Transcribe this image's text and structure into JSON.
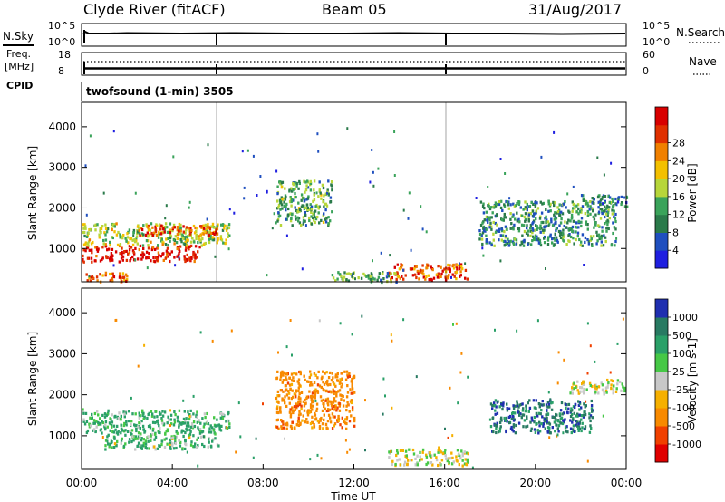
{
  "header": {
    "station": "Clyde River (fitACF)",
    "beam": "Beam 05",
    "date": "31/Aug/2017"
  },
  "noise_panel": {
    "left_label": "N.Sky",
    "right_label": "N.Search",
    "left_ticks": [
      "10^5",
      "10^0"
    ],
    "right_ticks": [
      "10^5",
      "10^0"
    ]
  },
  "freq_panel": {
    "left_label_1": "Freq.",
    "left_label_2": "[MHz]",
    "right_label": "Nave",
    "left_ticks": [
      "18",
      "8"
    ],
    "right_ticks": [
      "60",
      "0"
    ]
  },
  "cpid_panel": {
    "label": "CPID",
    "text": "twofsound (1-min) 3505"
  },
  "colors": {
    "power": [
      "#1f1fe0",
      "#1f4fbf",
      "#2a7a4a",
      "#3aa35a",
      "#b7d63a",
      "#f3c000",
      "#f08000",
      "#e03000",
      "#d80000"
    ],
    "velocity": [
      "#e00000",
      "#f04000",
      "#f88a00",
      "#f6b000",
      "#c8c8c8",
      "#46c846",
      "#2aa068",
      "#287a62",
      "#1f2fb0"
    ]
  },
  "chart_data": [
    {
      "type": "heatmap",
      "name": "power",
      "xlabel": "",
      "ylabel": "Slant Range [km]",
      "x_range": [
        "00:00",
        "00:00"
      ],
      "ylim": [
        180,
        4600
      ],
      "yticks": [
        1000,
        2000,
        3000,
        4000
      ],
      "colorbar": {
        "label": "Power [dB]",
        "ticks": [
          "4",
          "8",
          "12",
          "16",
          "20",
          "24",
          "28"
        ],
        "range": [
          0,
          32
        ]
      },
      "features": [
        {
          "t0": 0.0,
          "t1": 5.2,
          "r0": 700,
          "r1": 1100,
          "value": 30
        },
        {
          "t0": 0.0,
          "t1": 6.5,
          "r0": 1100,
          "r1": 1650,
          "value": 16
        },
        {
          "t0": 2.5,
          "t1": 6.0,
          "r0": 1350,
          "r1": 1600,
          "value": 26
        },
        {
          "t0": 0.0,
          "t1": 2.0,
          "r0": 200,
          "r1": 450,
          "value": 24
        },
        {
          "t0": 13.5,
          "t1": 17.0,
          "r0": 250,
          "r1": 650,
          "value": 26
        },
        {
          "t0": 11.0,
          "t1": 14.0,
          "r0": 200,
          "r1": 450,
          "value": 12
        },
        {
          "t0": 8.5,
          "t1": 11.0,
          "r0": 1600,
          "r1": 2700,
          "value": 12
        },
        {
          "t0": 17.5,
          "t1": 23.5,
          "r0": 1100,
          "r1": 2200,
          "value": 10
        },
        {
          "t0": 22.0,
          "t1": 24.0,
          "r0": 2050,
          "r1": 2350,
          "value": 8
        }
      ]
    },
    {
      "type": "heatmap",
      "name": "velocity",
      "xlabel": "Time UT",
      "ylabel": "Slant Range [km]",
      "x_range": [
        "00:00",
        "00:00"
      ],
      "xticks": [
        "00:00",
        "04:00",
        "08:00",
        "12:00",
        "16:00",
        "20:00",
        "00:00"
      ],
      "ylim": [
        180,
        4600
      ],
      "yticks": [
        1000,
        2000,
        3000,
        4000
      ],
      "colorbar": {
        "label": "Velocity [m s-1]",
        "ticks": [
          "-1000",
          "-500",
          "-100",
          "-25",
          "25",
          "100",
          "500",
          "1000"
        ]
      },
      "features": [
        {
          "t0": 0.0,
          "t1": 6.5,
          "r0": 1100,
          "r1": 1650,
          "value": 150
        },
        {
          "t0": 1.0,
          "t1": 6.0,
          "r0": 700,
          "r1": 1100,
          "value": 100
        },
        {
          "t0": 8.5,
          "t1": 12.0,
          "r0": 1200,
          "r1": 2600,
          "value": -300
        },
        {
          "t0": 18.0,
          "t1": 22.5,
          "r0": 1100,
          "r1": 1900,
          "value": 800
        },
        {
          "t0": 21.5,
          "t1": 24.0,
          "r0": 2050,
          "r1": 2400,
          "value": 0
        },
        {
          "t0": 13.5,
          "t1": 17.0,
          "r0": 300,
          "r1": 700,
          "value": 0
        }
      ]
    }
  ]
}
